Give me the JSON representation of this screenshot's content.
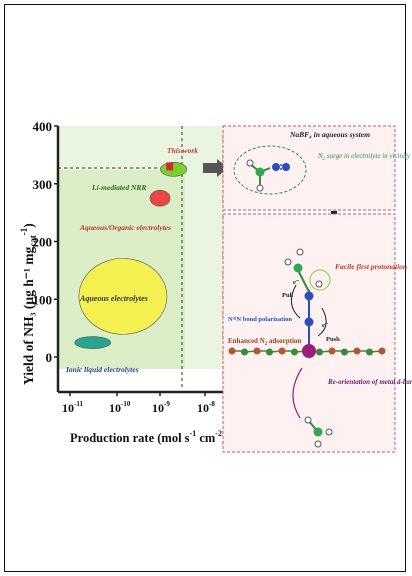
{
  "chart": {
    "y_label": "Yield of NH₃ (μg h⁻¹ mg",
    "y_label_sub": "cat",
    "y_label_sup": "-1",
    "y_label_end": ")",
    "x_label": "Production rate (mol s",
    "x_label_sup1": "-1",
    "x_label_mid": " cm",
    "x_label_sup2": "-2",
    "x_label_end": ")",
    "y_ticks": [
      "0",
      "100",
      "200",
      "300",
      "400"
    ],
    "x_tick_base": "10",
    "x_tick_exps": [
      "-11",
      "-10",
      "-9",
      "-8"
    ],
    "labels": {
      "this_work": "This work",
      "li_mediated": "Li-mediated NRR",
      "aqueous_organic": "Aqueous/Organic electrolytes",
      "aqueous": "Aqueous electrolytes",
      "ionic_liquid": "Ionic liquid electrolytes"
    }
  },
  "chart_data": {
    "type": "scatter",
    "title": "",
    "xlabel": "Production rate (mol s-1 cm-2)",
    "ylabel": "Yield of NH3 (μg h-1 mgcat-1)",
    "xscale": "log",
    "xlim": [
      1e-11,
      1e-08
    ],
    "ylim": [
      0,
      400
    ],
    "series": [
      {
        "name": "This work",
        "x": [
          1.6e-09
        ],
        "y": [
          330
        ]
      },
      {
        "name": "Li-mediated NRR",
        "x": [
          2e-09
        ],
        "y": [
          325
        ]
      },
      {
        "name": "Aqueous/Organic electrolytes",
        "x": [
          1e-09
        ],
        "y": [
          275
        ]
      },
      {
        "name": "Aqueous electrolytes",
        "x": [
          1.5e-10
        ],
        "y": [
          105
        ]
      },
      {
        "name": "Ionic liquid electrolytes",
        "x": [
          3.2e-11
        ],
        "y": [
          25
        ]
      }
    ]
  },
  "panel_top": {
    "title": "NaBF₄ in aqueous system",
    "caption_pre": "N",
    "caption_sub": "2",
    "caption_post": " surge in electrolyte in vicinity of catalyst"
  },
  "panel_bottom": {
    "facile": "Facile first protonation",
    "pull": "Pull",
    "push": "Push",
    "e_label": "e⁻",
    "polarization": "N≡N bond polarization",
    "enhanced_pre": "Enhanced N",
    "enhanced_sub": "2",
    "enhanced_post": " adsorption",
    "reorientation": "Re-orientation of metal d-band center"
  },
  "colors": {
    "green_shade": "#dcefc9",
    "red_dash": "#d9506a",
    "yellow": "#f4f052",
    "teal": "#27a58f",
    "green_ellipse": "#7ad12e",
    "red_ellipse": "#ef4444",
    "axis": "#222222"
  }
}
